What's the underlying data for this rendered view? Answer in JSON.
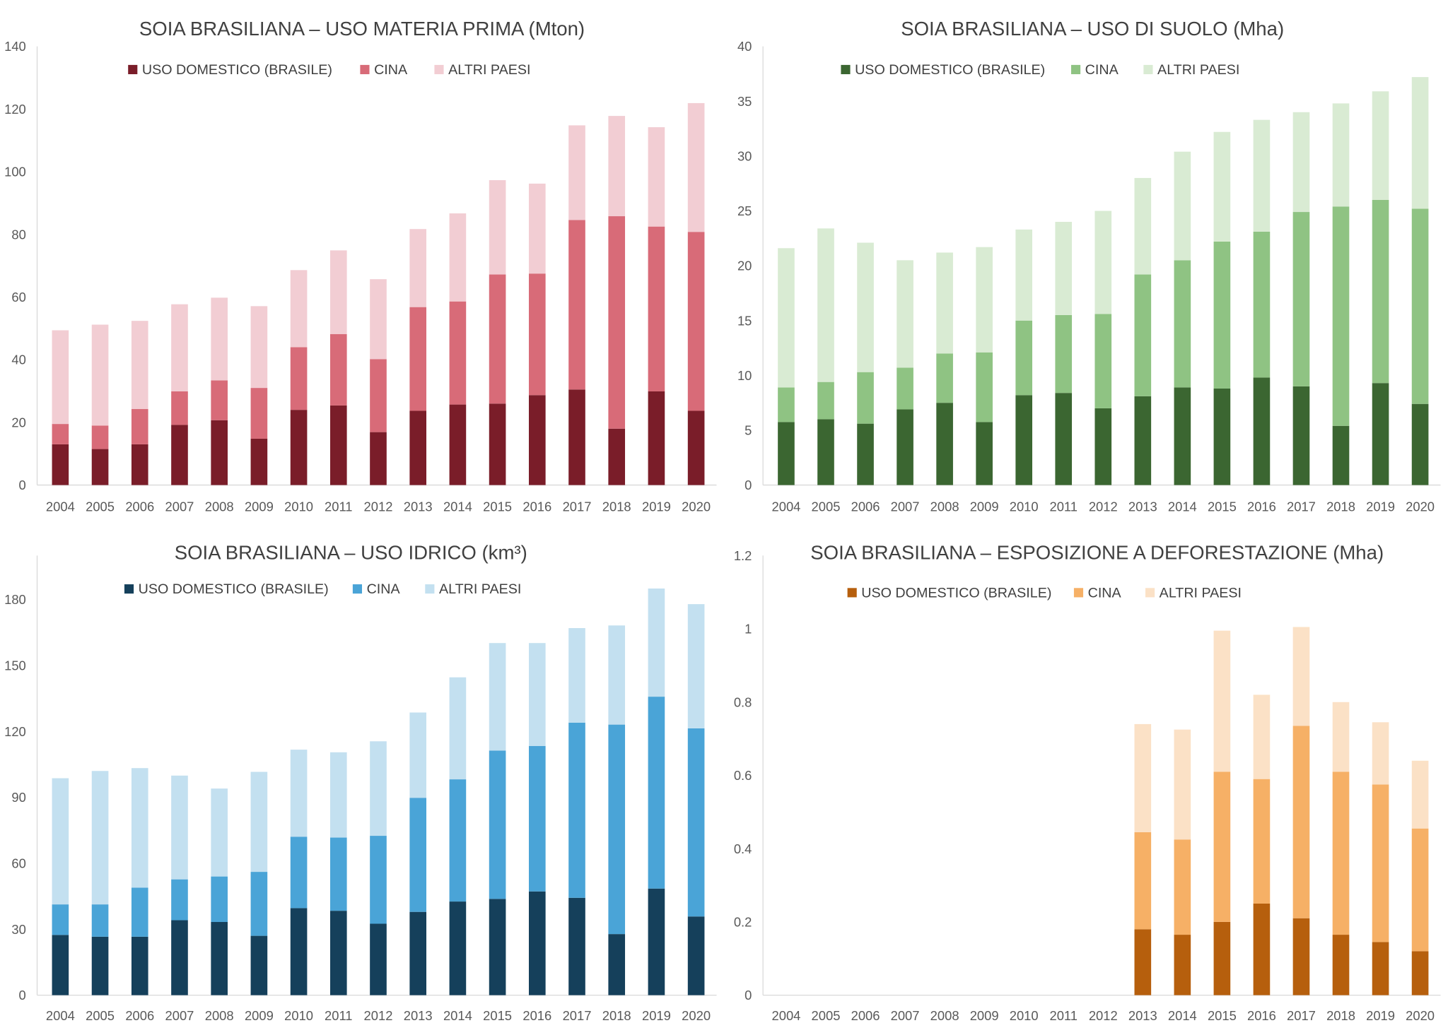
{
  "chart_data": [
    {
      "type": "bar",
      "stacked": true,
      "title": "SOIA BRASILIANA – USO MATERIA PRIMA (Mton)",
      "xlabel": "",
      "ylabel": "",
      "categories": [
        "2004",
        "2005",
        "2006",
        "2007",
        "2008",
        "2009",
        "2010",
        "2011",
        "2012",
        "2013",
        "2014",
        "2015",
        "2016",
        "2017",
        "2018",
        "2019",
        "2020"
      ],
      "ylim": [
        0,
        140
      ],
      "yticks": [
        0,
        20,
        40,
        60,
        80,
        100,
        120,
        140
      ],
      "legend": "top",
      "grid": false,
      "series": [
        {
          "name": "USO DOMESTICO (BRASILE)",
          "color": "#7a1d29",
          "values": [
            13,
            11.5,
            13,
            19.2,
            20.7,
            14.8,
            24,
            25.4,
            16.9,
            23.7,
            25.7,
            26,
            28.7,
            30.5,
            18,
            29.9,
            23.7
          ]
        },
        {
          "name": "CINA",
          "color": "#d86b78",
          "values": [
            6.5,
            7.5,
            11.3,
            10.7,
            12.7,
            16.2,
            20,
            22.8,
            23.3,
            33.1,
            32.9,
            41.2,
            38.8,
            54.1,
            67.8,
            52.6,
            57.1
          ]
        },
        {
          "name": "ALTRI PAESI",
          "color": "#f2cdd3",
          "values": [
            29.9,
            32.2,
            28.1,
            27.8,
            26.4,
            26.1,
            24.6,
            26.7,
            25.5,
            24.9,
            28.1,
            30.1,
            28.7,
            30.2,
            32,
            31.7,
            41.1
          ]
        }
      ]
    },
    {
      "type": "bar",
      "stacked": true,
      "title": "SOIA BRASILIANA – USO DI SUOLO (Mha)",
      "xlabel": "",
      "ylabel": "",
      "categories": [
        "2004",
        "2005",
        "2006",
        "2007",
        "2008",
        "2009",
        "2010",
        "2011",
        "2012",
        "2013",
        "2014",
        "2015",
        "2016",
        "2017",
        "2018",
        "2019",
        "2020"
      ],
      "ylim": [
        0,
        40
      ],
      "yticks": [
        0,
        5,
        10,
        15,
        20,
        25,
        30,
        35,
        40
      ],
      "legend": "top",
      "grid": false,
      "series": [
        {
          "name": "USO DOMESTICO (BRASILE)",
          "color": "#3b6631",
          "values": [
            5.75,
            6.0,
            5.6,
            6.9,
            7.5,
            5.75,
            8.2,
            8.4,
            7.0,
            8.1,
            8.9,
            8.8,
            9.8,
            9.0,
            5.4,
            9.3,
            7.4
          ]
        },
        {
          "name": "CINA",
          "color": "#8fc383",
          "values": [
            3.15,
            3.4,
            4.7,
            3.8,
            4.5,
            6.35,
            6.8,
            7.1,
            8.6,
            11.1,
            11.6,
            13.4,
            13.3,
            15.9,
            20.0,
            16.7,
            17.8
          ]
        },
        {
          "name": "ALTRI PAESI",
          "color": "#d9ebd3",
          "values": [
            12.7,
            14.0,
            11.8,
            9.8,
            9.2,
            9.6,
            8.3,
            8.5,
            9.4,
            8.8,
            9.9,
            10.0,
            10.2,
            9.1,
            9.4,
            9.9,
            12.0
          ]
        }
      ]
    },
    {
      "type": "bar",
      "stacked": true,
      "title": "SOIA BRASILIANA – USO IDRICO (km³)",
      "xlabel": "",
      "ylabel": "",
      "categories": [
        "2004",
        "2005",
        "2006",
        "2007",
        "2008",
        "2009",
        "2010",
        "2011",
        "2012",
        "2013",
        "2014",
        "2015",
        "2016",
        "2017",
        "2018",
        "2019",
        "2020"
      ],
      "ylim": [
        0,
        200
      ],
      "yticks": [
        0,
        30,
        60,
        90,
        120,
        150,
        180
      ],
      "legend": "top",
      "grid": false,
      "series": [
        {
          "name": "USO DOMESTICO (BRASILE)",
          "color": "#15405b",
          "values": [
            27.4,
            26.6,
            26.6,
            34.1,
            33.3,
            27,
            39.6,
            38.4,
            32.5,
            37.9,
            42.6,
            43.8,
            47.2,
            44.3,
            27.8,
            48.5,
            35.8
          ]
        },
        {
          "name": "CINA",
          "color": "#4aa4d7",
          "values": [
            13.9,
            14.7,
            22.3,
            18.6,
            20.7,
            29.1,
            32.5,
            33.3,
            40,
            51.9,
            55.6,
            67.5,
            66.2,
            79.7,
            95.3,
            87.3,
            85.6
          ]
        },
        {
          "name": "ALTRI PAESI",
          "color": "#c3e0f0",
          "values": [
            57.4,
            60.7,
            54.4,
            47.2,
            40,
            45.5,
            39.6,
            38.8,
            43,
            38.8,
            46.4,
            48.9,
            46.8,
            43,
            45.1,
            49.2,
            56.5
          ]
        }
      ]
    },
    {
      "type": "bar",
      "stacked": true,
      "title": "SOIA BRASILIANA – ESPOSIZIONE A DEFORESTAZIONE (Mha)",
      "xlabel": "",
      "ylabel": "",
      "categories": [
        "2004",
        "2005",
        "2006",
        "2007",
        "2008",
        "2009",
        "2010",
        "2011",
        "2012",
        "2013",
        "2014",
        "2015",
        "2016",
        "2017",
        "2018",
        "2019",
        "2020"
      ],
      "ylim": [
        0,
        1.2
      ],
      "yticks": [
        0,
        0.2,
        0.4,
        0.6,
        0.8,
        1,
        1.2
      ],
      "legend": "top",
      "grid": false,
      "series": [
        {
          "name": "USO DOMESTICO (BRASILE)",
          "color": "#b65f0d",
          "values": [
            null,
            null,
            null,
            null,
            null,
            null,
            null,
            null,
            null,
            0.18,
            0.165,
            0.2,
            0.25,
            0.21,
            0.165,
            0.145,
            0.12
          ]
        },
        {
          "name": "CINA",
          "color": "#f6b066",
          "values": [
            null,
            null,
            null,
            null,
            null,
            null,
            null,
            null,
            null,
            0.265,
            0.26,
            0.41,
            0.34,
            0.525,
            0.445,
            0.43,
            0.335
          ]
        },
        {
          "name": "ALTRI PAESI",
          "color": "#fbe1c6",
          "values": [
            null,
            null,
            null,
            null,
            null,
            null,
            null,
            null,
            null,
            0.295,
            0.3,
            0.385,
            0.23,
            0.27,
            0.19,
            0.17,
            0.185
          ]
        }
      ]
    }
  ]
}
